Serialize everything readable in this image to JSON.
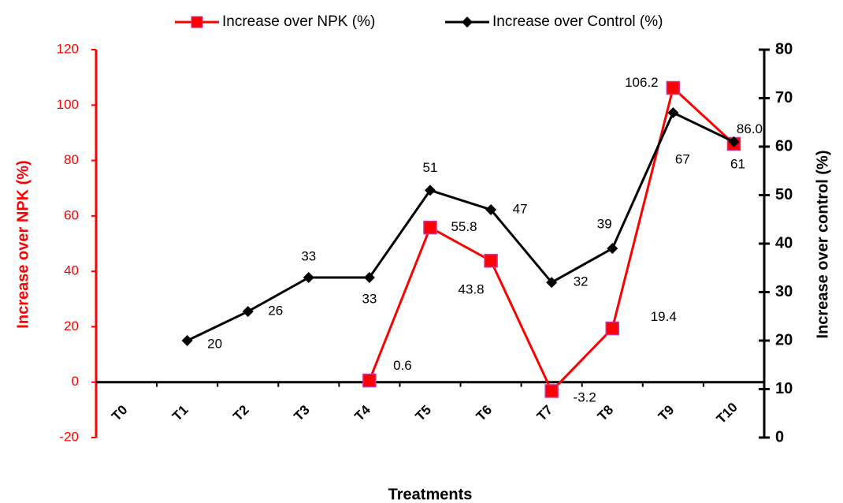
{
  "chart_data": {
    "type": "line",
    "categories": [
      "T0",
      "T1",
      "T2",
      "T3",
      "T4",
      "T5",
      "T6",
      "T7",
      "T8",
      "T9",
      "T10"
    ],
    "series": [
      {
        "name": "Increase over NPK (%)",
        "color": "#ff0000",
        "marker": "square",
        "axis": "y",
        "values": [
          null,
          null,
          null,
          null,
          0.6,
          55.8,
          43.8,
          -3.2,
          19.4,
          106.2,
          86.0
        ],
        "value_labels": [
          null,
          null,
          null,
          null,
          "0.6",
          "55.8",
          "43.8",
          "-3.2",
          "19.4",
          "106.2",
          "86.0"
        ]
      },
      {
        "name": "Increase over Control (%)",
        "color": "#000000",
        "marker": "diamond",
        "axis": "y2",
        "values": [
          null,
          20,
          26,
          33,
          33,
          51,
          47,
          32,
          39,
          67,
          61
        ]
      }
    ],
    "xlabel": "Treatments",
    "ylabel": "Increase over NPK (%)",
    "y2label": "Increase over control (%)",
    "ylim": [
      -20,
      120
    ],
    "yticks": [
      -20,
      0,
      20,
      40,
      60,
      80,
      100,
      120
    ],
    "y2lim": [
      0,
      80
    ],
    "y2ticks": [
      0,
      10,
      20,
      30,
      40,
      50,
      60,
      70,
      80
    ],
    "ycolor": "#ff0000",
    "y2color": "#000000",
    "legend": "top"
  }
}
